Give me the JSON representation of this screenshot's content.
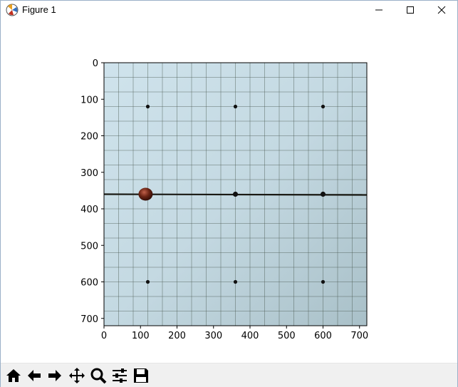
{
  "window": {
    "title": "Figure 1",
    "controls": [
      "minimize",
      "maximize",
      "close"
    ]
  },
  "chart_data": {
    "type": "image",
    "description_of_axes": "",
    "x_ticks": [
      "0",
      "100",
      "200",
      "300",
      "400",
      "500",
      "600",
      "700"
    ],
    "y_ticks": [
      "0",
      "100",
      "200",
      "300",
      "400",
      "500",
      "600",
      "700"
    ],
    "xlim": [
      0,
      720
    ],
    "ylim": [
      720,
      0
    ],
    "dots": [
      {
        "x": 120,
        "y": 120
      },
      {
        "x": 360,
        "y": 120
      },
      {
        "x": 600,
        "y": 120
      },
      {
        "x": 360,
        "y": 360
      },
      {
        "x": 600,
        "y": 360
      },
      {
        "x": 120,
        "y": 600
      },
      {
        "x": 360,
        "y": 600
      },
      {
        "x": 600,
        "y": 600
      }
    ],
    "ball": {
      "x": 112,
      "y": 358
    },
    "horizontal_line_y": 360,
    "colors": {
      "paper": "#c8dde6",
      "grid": "#4a5a50",
      "ball": "#5a1a10"
    }
  },
  "toolbar": {
    "buttons": [
      {
        "name": "home",
        "icon": "home-icon"
      },
      {
        "name": "back",
        "icon": "arrow-left-icon"
      },
      {
        "name": "forward",
        "icon": "arrow-right-icon"
      },
      {
        "name": "pan",
        "icon": "move-icon"
      },
      {
        "name": "zoom",
        "icon": "zoom-icon"
      },
      {
        "name": "configure",
        "icon": "sliders-icon"
      },
      {
        "name": "save",
        "icon": "save-icon"
      }
    ]
  }
}
